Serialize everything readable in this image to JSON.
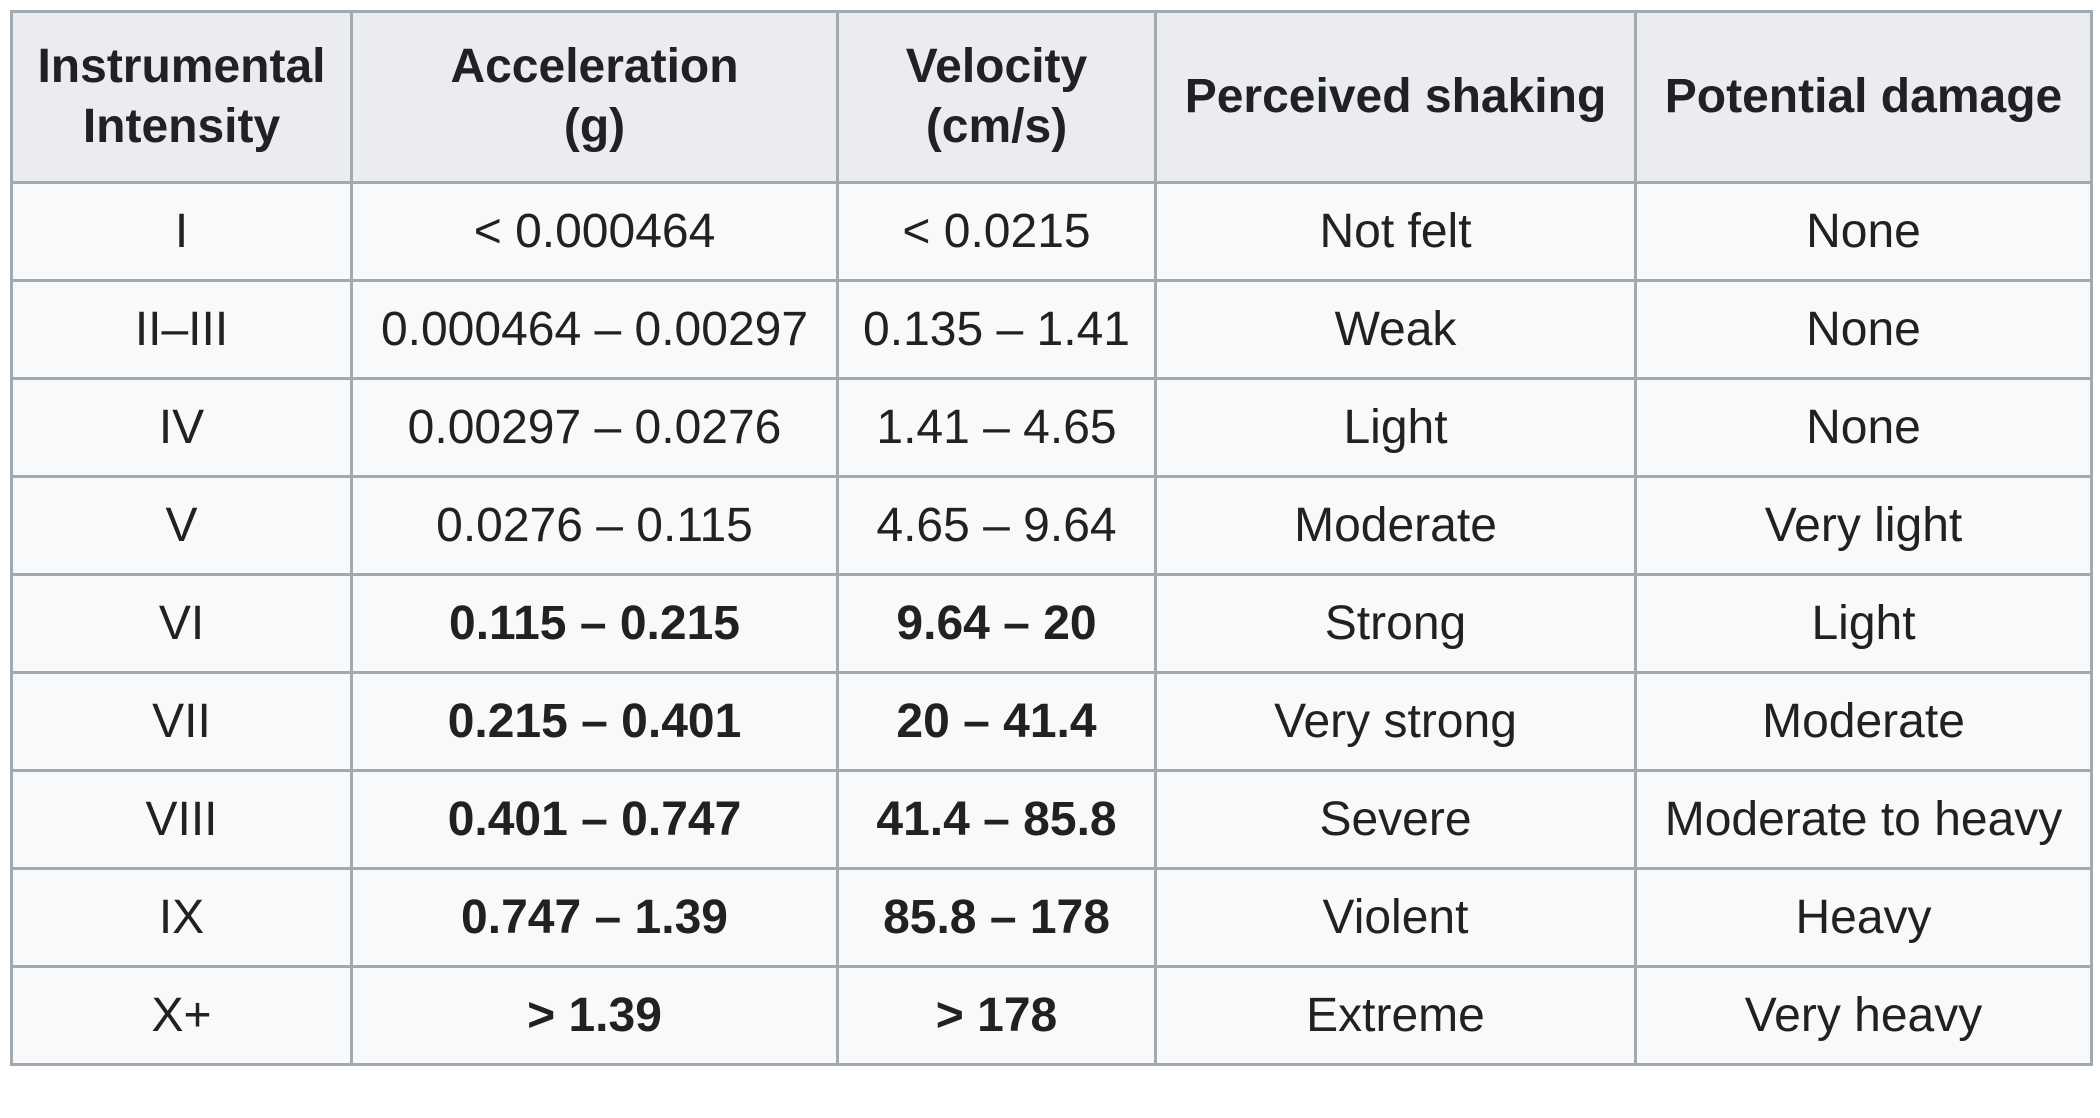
{
  "table": {
    "headers": [
      [
        "Instrumental",
        "Intensity"
      ],
      [
        "Acceleration",
        "(g)"
      ],
      [
        "Velocity",
        "(cm/s)"
      ],
      [
        "Perceived shaking"
      ],
      [
        "Potential damage"
      ]
    ],
    "rows": [
      {
        "intensity": "I",
        "acceleration": "< 0.000464",
        "velocity": "< 0.0215",
        "shaking": "Not felt",
        "damage": "None",
        "bold": false
      },
      {
        "intensity": "II–III",
        "acceleration": "0.000464 – 0.00297",
        "velocity": "0.135 – 1.41",
        "shaking": "Weak",
        "damage": "None",
        "bold": false
      },
      {
        "intensity": "IV",
        "acceleration": "0.00297 – 0.0276",
        "velocity": "1.41 – 4.65",
        "shaking": "Light",
        "damage": "None",
        "bold": false
      },
      {
        "intensity": "V",
        "acceleration": "0.0276 – 0.115",
        "velocity": "4.65 – 9.64",
        "shaking": "Moderate",
        "damage": "Very light",
        "bold": false
      },
      {
        "intensity": "VI",
        "acceleration": "0.115 – 0.215",
        "velocity": "9.64 – 20",
        "shaking": "Strong",
        "damage": "Light",
        "bold": true
      },
      {
        "intensity": "VII",
        "acceleration": "0.215 – 0.401",
        "velocity": "20 – 41.4",
        "shaking": "Very strong",
        "damage": "Moderate",
        "bold": true
      },
      {
        "intensity": "VIII",
        "acceleration": "0.401 – 0.747",
        "velocity": "41.4 – 85.8",
        "shaking": "Severe",
        "damage": "Moderate to heavy",
        "bold": true
      },
      {
        "intensity": "IX",
        "acceleration": "0.747 – 1.39",
        "velocity": "85.8 – 178",
        "shaking": "Violent",
        "damage": "Heavy",
        "bold": true
      },
      {
        "intensity": "X+",
        "acceleration": "> 1.39",
        "velocity": "> 178",
        "shaking": "Extreme",
        "damage": "Very heavy",
        "bold": true
      }
    ]
  },
  "colors": {
    "border": "#a2a9b1",
    "header_bg": "#eaecf0",
    "cell_bg": "#f8f9fa",
    "text": "#202122"
  }
}
